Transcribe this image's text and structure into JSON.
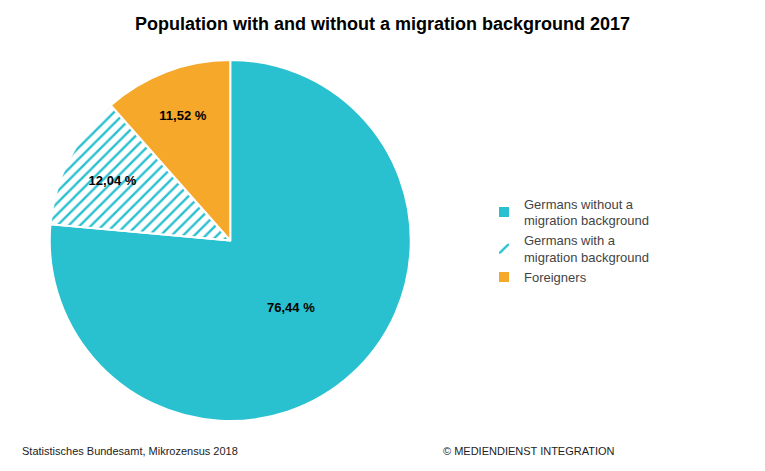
{
  "chart_data": {
    "type": "pie",
    "title": "Population with and without a migration background 2017",
    "categories": [
      "Germans without a\nmigration background",
      "Germans with a\nmigration background",
      "Foreigners"
    ],
    "values": [
      76.44,
      12.04,
      11.52
    ],
    "value_labels": [
      "76,44 %",
      "12,04 %",
      "11,52 %"
    ],
    "colors": [
      "#29C0D0",
      "#29C0D0",
      "#F5A82A"
    ],
    "data_labels": true,
    "legend": "right",
    "annotations": [
      "Statistisches Bundesamt, Mikrozensus 2018",
      "© MEDIENDIENST INTEGRATION"
    ]
  }
}
